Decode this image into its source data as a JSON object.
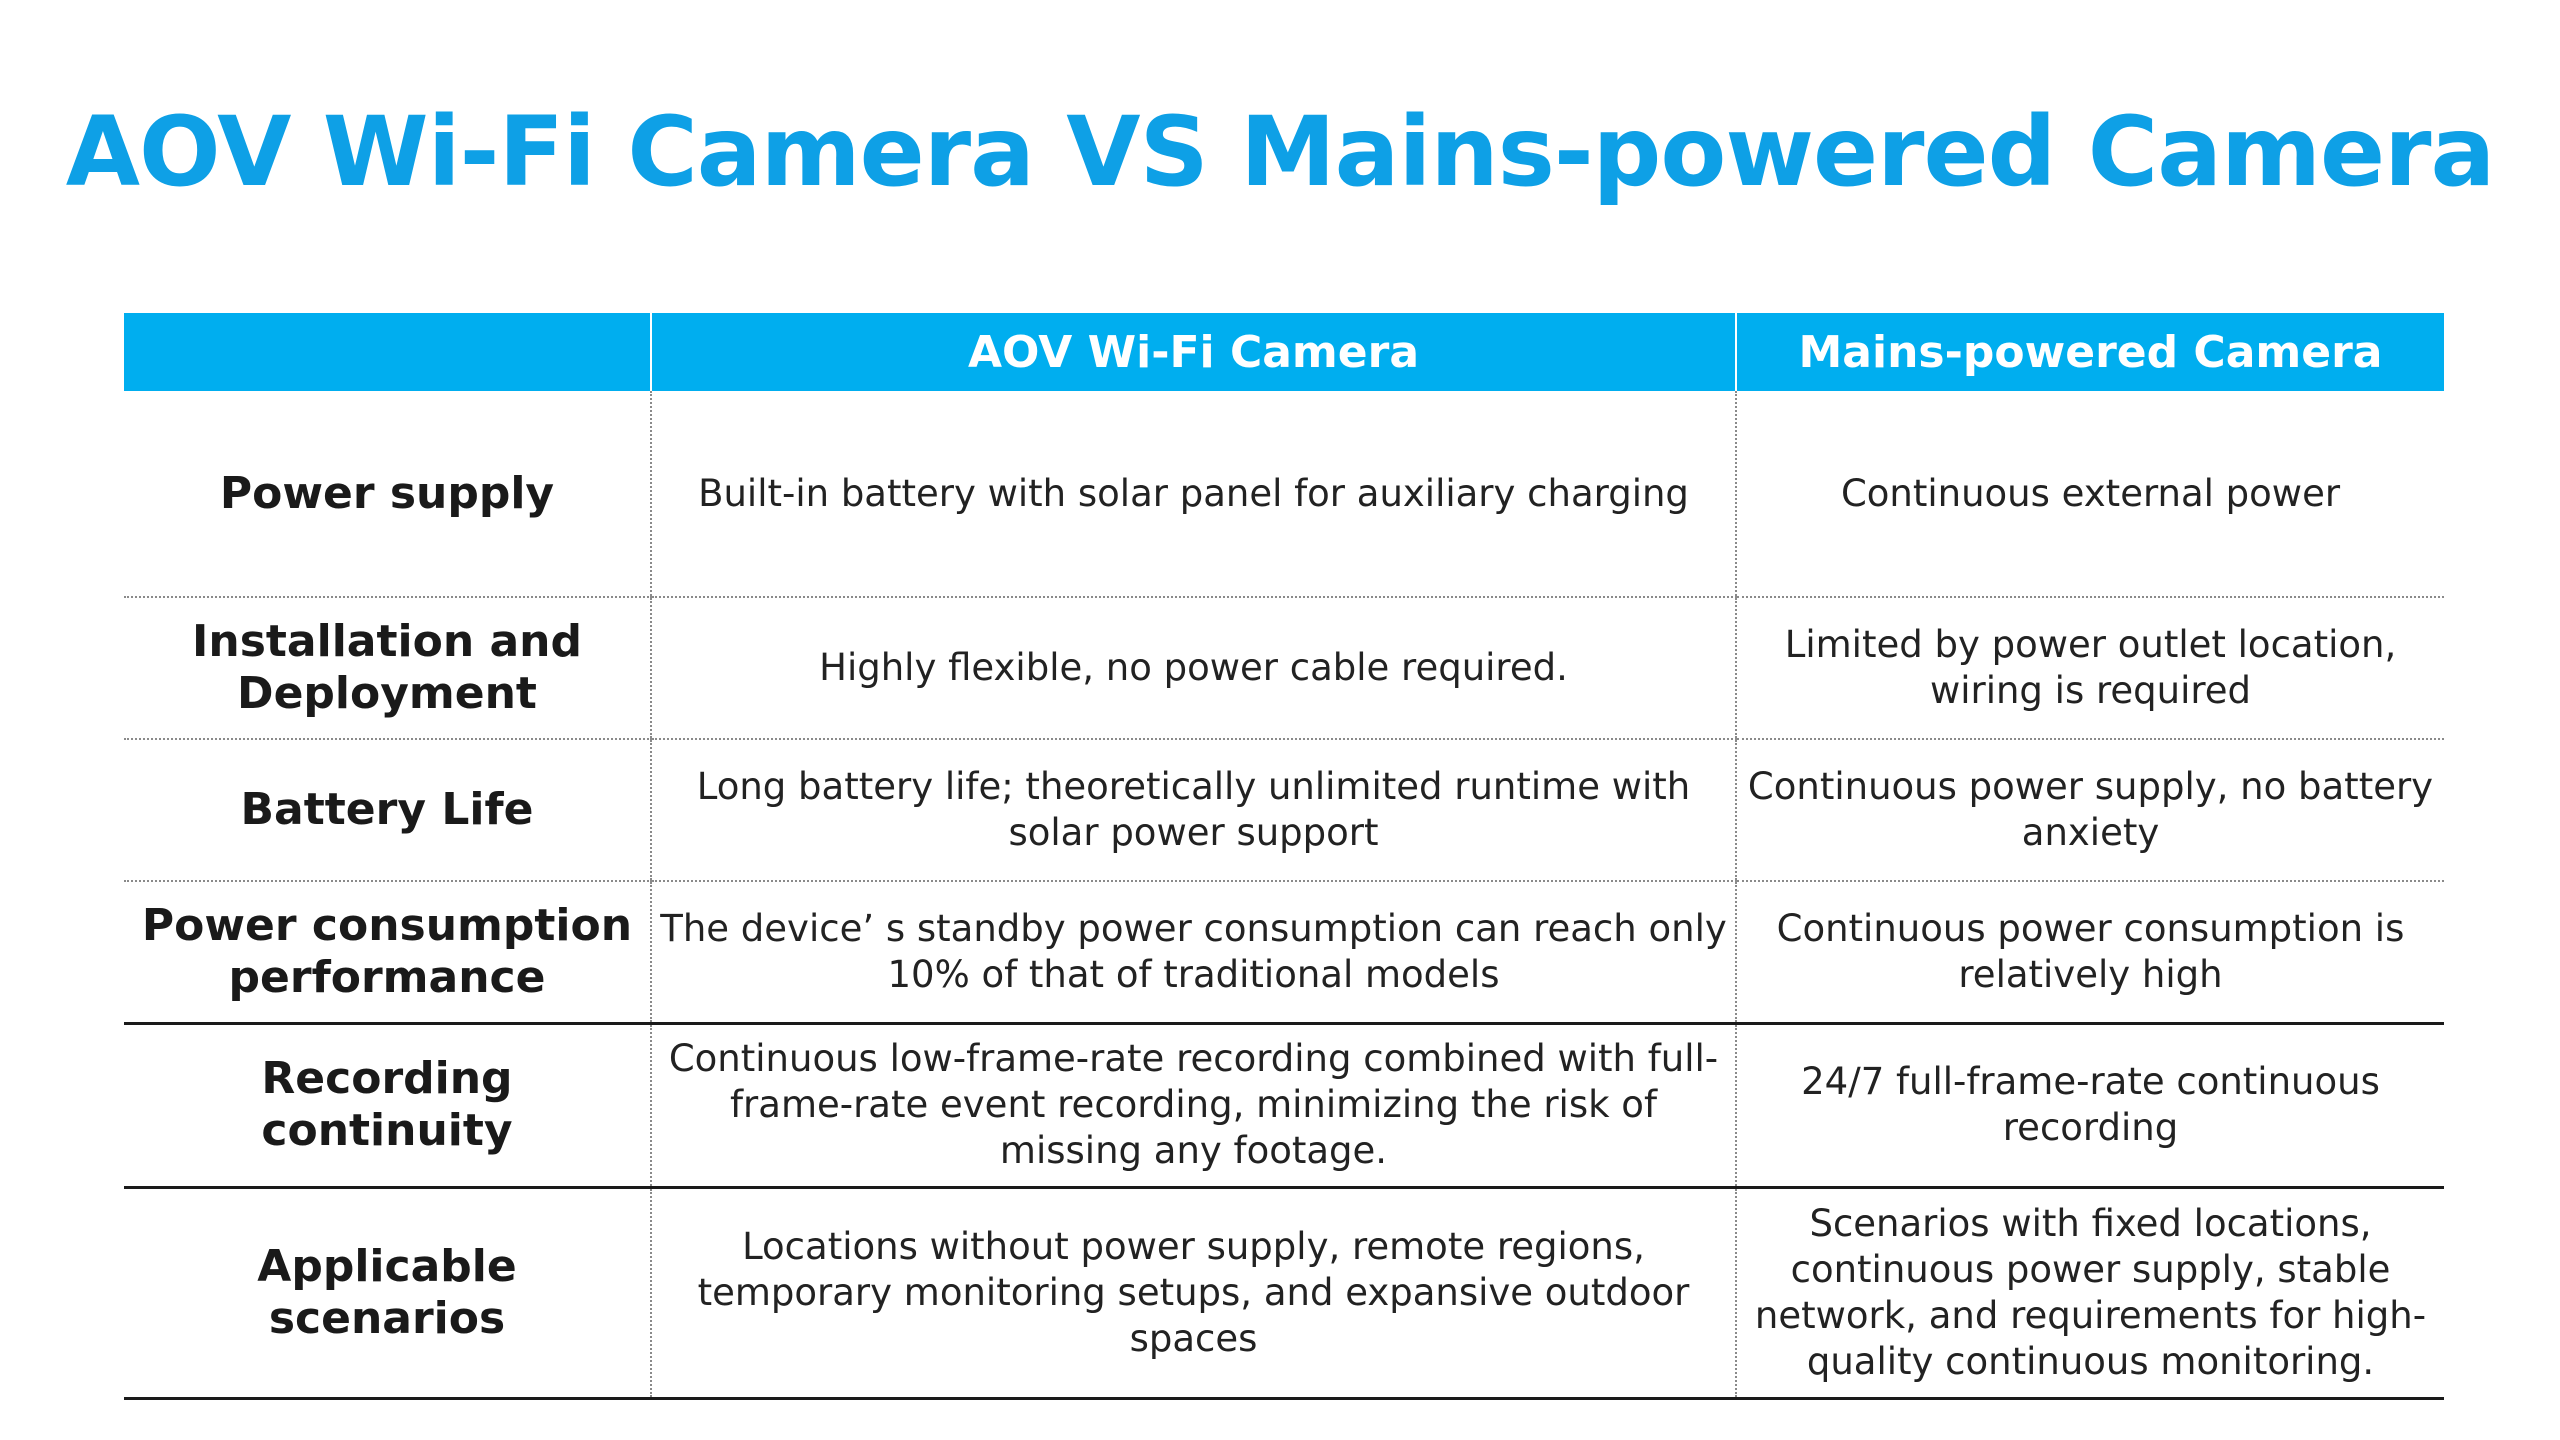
{
  "title": "AOV Wi-Fi Camera VS Mains-powered Camera",
  "table": {
    "headers": [
      "",
      "AOV Wi-Fi Camera",
      "Mains-powered Camera"
    ],
    "rows": [
      {
        "label": "Power supply",
        "aov": "Built-in battery with solar panel for auxiliary charging",
        "mains": "Continuous external power"
      },
      {
        "label": "Installation and Deployment",
        "aov": "Highly flexible, no power cable required.",
        "mains": "Limited by power outlet location, wiring is required"
      },
      {
        "label": "Battery Life",
        "aov": "Long battery life; theoretically unlimited runtime with solar power support",
        "mains": "Continuous power supply, no battery anxiety"
      },
      {
        "label": "Power consumption performance",
        "aov": "The device’ s standby power consumption can reach only 10% of that of traditional models",
        "mains": "Continuous power consumption is relatively high"
      },
      {
        "label": "Recording continuity",
        "aov": "Continuous low-frame-rate recording combined with full-frame-rate event recording, minimizing the risk of missing any footage.",
        "mains": "24/7 full-frame-rate continuous recording"
      },
      {
        "label": "Applicable scenarios",
        "aov": "Locations without power supply, remote regions, temporary monitoring setups, and expansive outdoor spaces",
        "mains": "Scenarios with fixed locations, continuous power supply, stable network, and requirements for high-quality continuous monitoring."
      }
    ]
  }
}
